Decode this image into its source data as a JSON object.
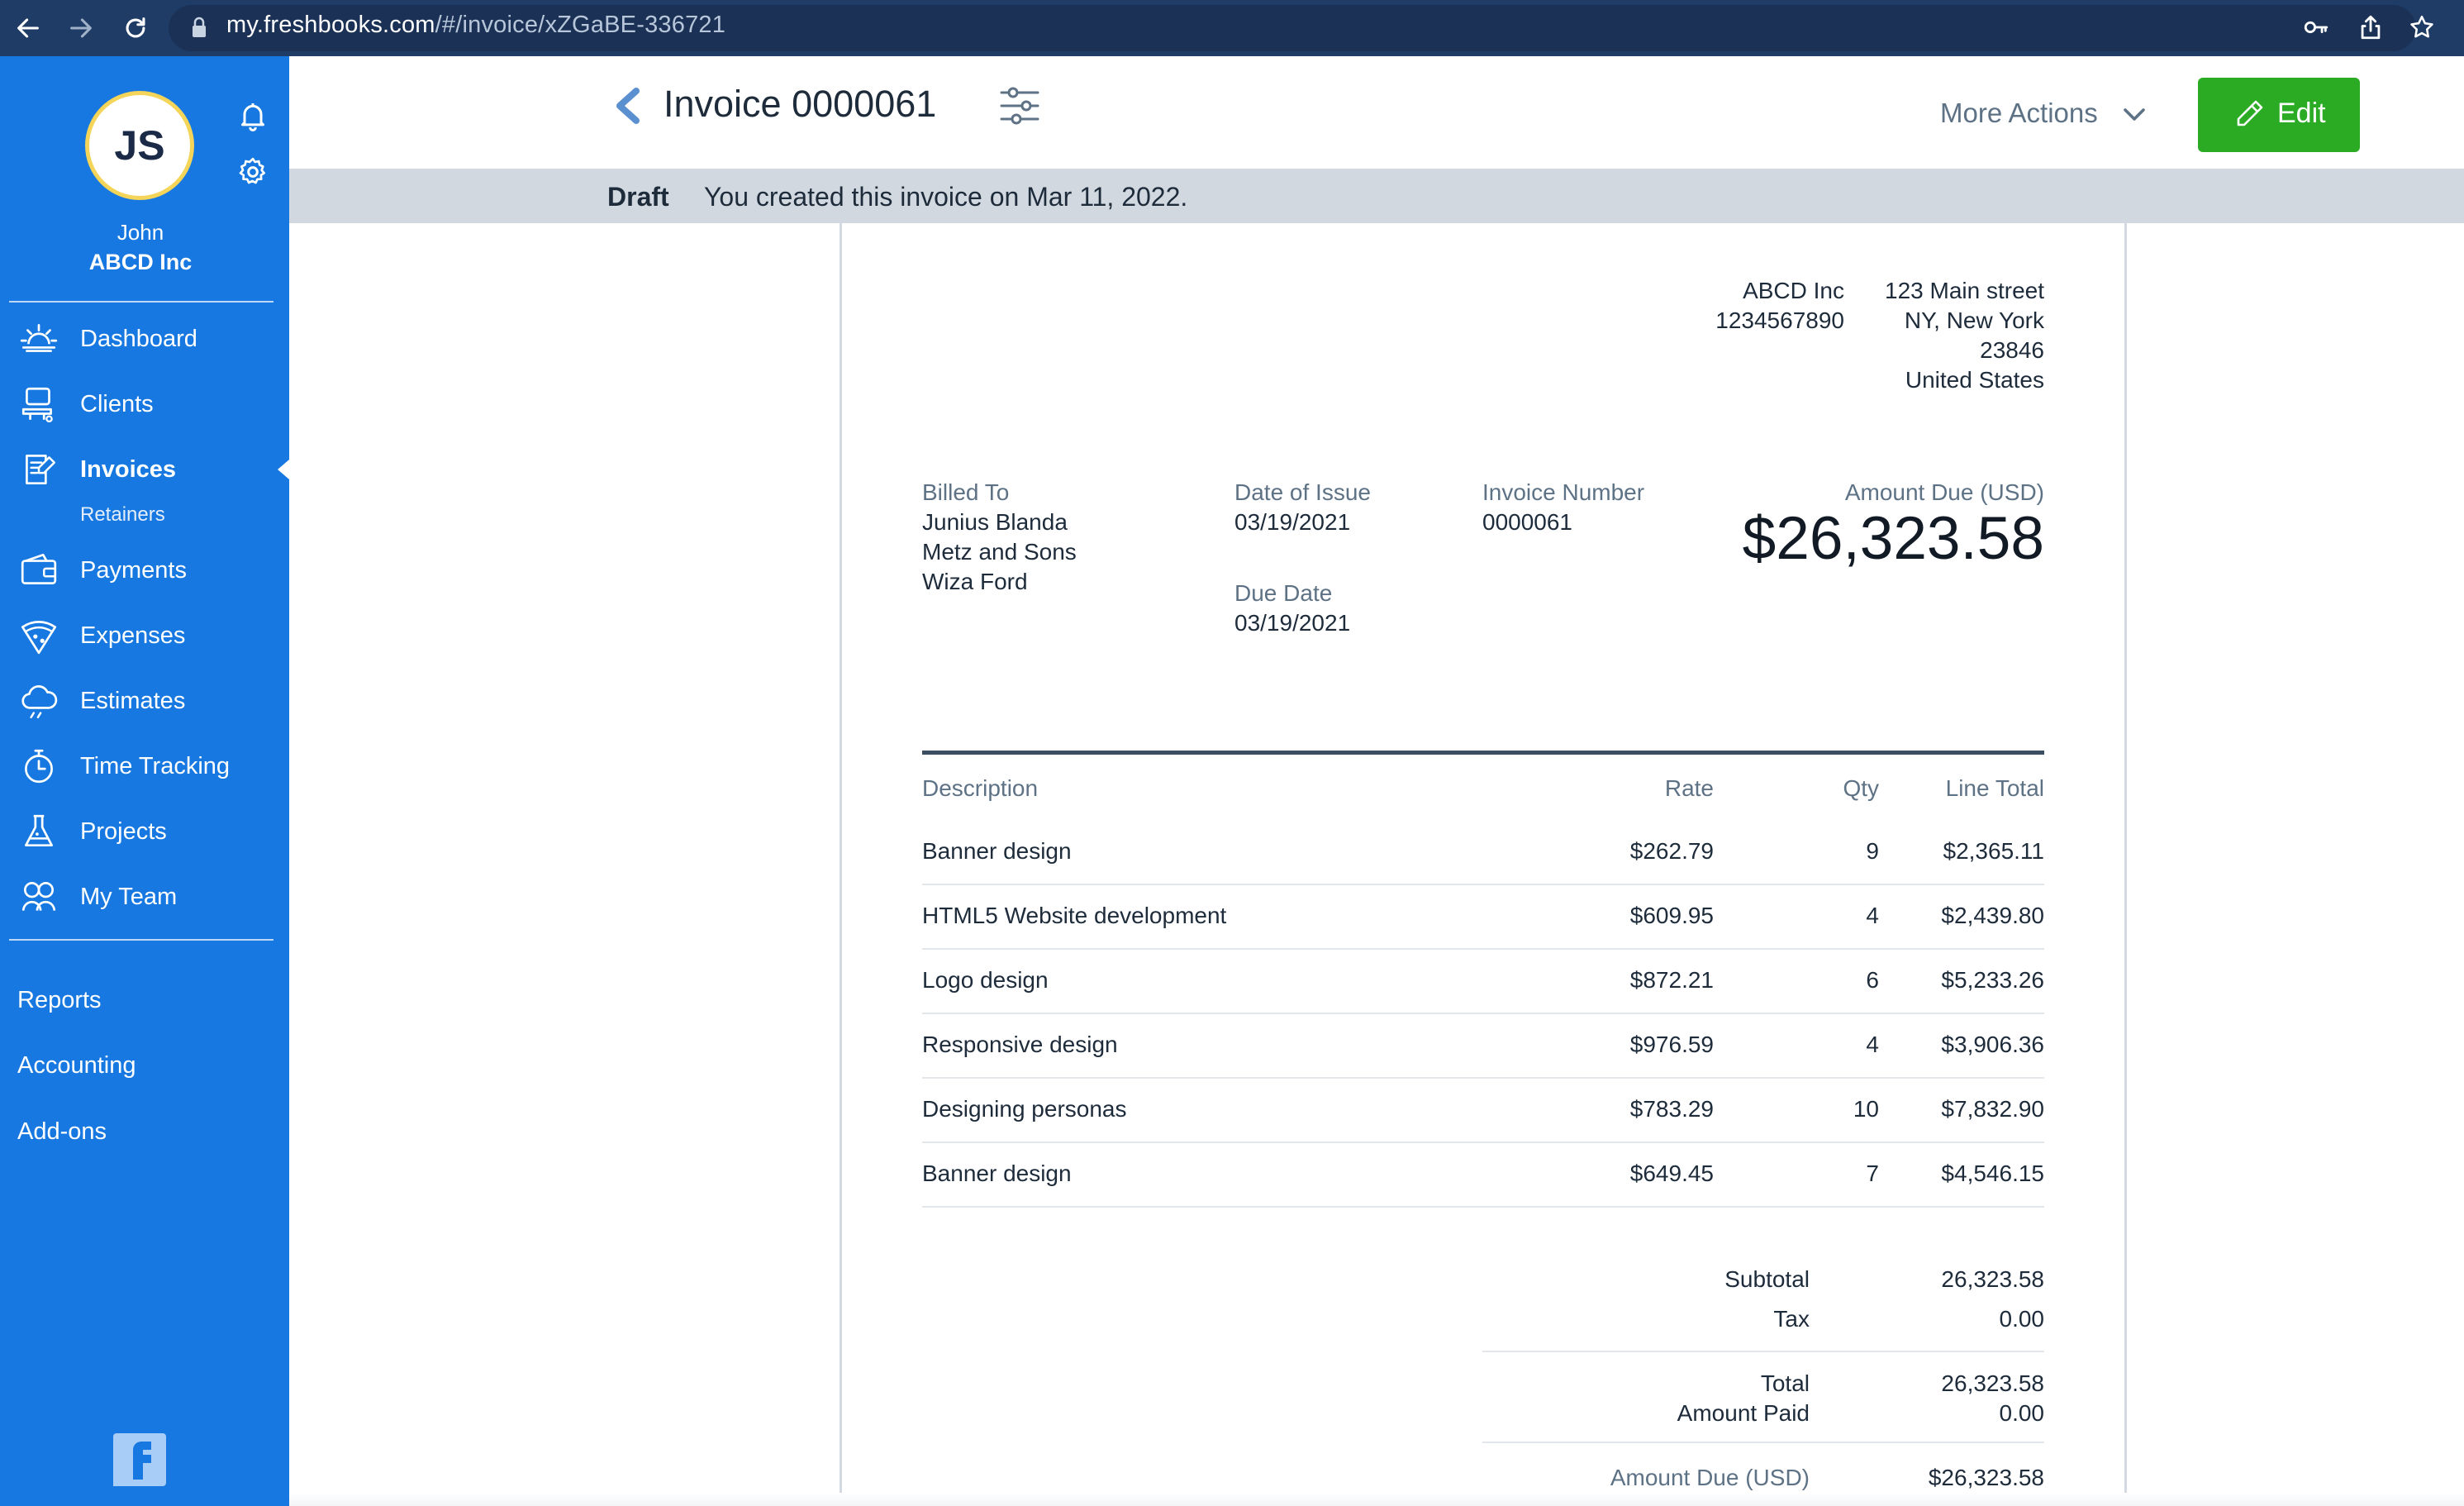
{
  "browser": {
    "url_host": "my.freshbooks.com",
    "url_path": "/#/invoice/xZGaBE-336721"
  },
  "sidebar": {
    "avatar_initials": "JS",
    "user_name": "John",
    "company": "ABCD Inc",
    "items": [
      {
        "label": "Dashboard",
        "icon": "dashboard-sun-icon"
      },
      {
        "label": "Clients",
        "icon": "clients-icon"
      },
      {
        "label": "Invoices",
        "icon": "invoices-icon",
        "active": true
      },
      {
        "label": "Payments",
        "icon": "payments-wallet-icon"
      },
      {
        "label": "Expenses",
        "icon": "expenses-pizza-icon"
      },
      {
        "label": "Estimates",
        "icon": "estimates-cloud-icon"
      },
      {
        "label": "Time Tracking",
        "icon": "stopwatch-icon"
      },
      {
        "label": "Projects",
        "icon": "flask-icon"
      },
      {
        "label": "My Team",
        "icon": "team-icon"
      }
    ],
    "sub_items": {
      "invoices": "Retainers"
    },
    "bottom_links": [
      "Reports",
      "Accounting",
      "Add-ons"
    ]
  },
  "header": {
    "title": "Invoice 0000061",
    "more_actions": "More Actions",
    "edit_label": "Edit"
  },
  "status": {
    "state": "Draft",
    "message": "You created this invoice on Mar 11, 2022."
  },
  "invoice": {
    "company": {
      "name": "ABCD Inc",
      "phone": "1234567890",
      "street": "123 Main street",
      "city": "NY, New York",
      "zip": "23846",
      "country": "United States"
    },
    "billed_to_label": "Billed To",
    "billed_to": [
      "Junius Blanda",
      "Metz and Sons",
      "Wiza Ford"
    ],
    "date_of_issue_label": "Date of Issue",
    "date_of_issue": "03/19/2021",
    "due_date_label": "Due Date",
    "due_date": "03/19/2021",
    "invoice_number_label": "Invoice Number",
    "invoice_number": "0000061",
    "amount_due_label": "Amount Due (USD)",
    "amount_due": "$26,323.58",
    "columns": {
      "description": "Description",
      "rate": "Rate",
      "qty": "Qty",
      "line_total": "Line Total"
    },
    "lines": [
      {
        "description": "Banner design",
        "rate": "$262.79",
        "qty": "9",
        "total": "$2,365.11"
      },
      {
        "description": "HTML5 Website development",
        "rate": "$609.95",
        "qty": "4",
        "total": "$2,439.80"
      },
      {
        "description": "Logo design",
        "rate": "$872.21",
        "qty": "6",
        "total": "$5,233.26"
      },
      {
        "description": "Responsive design",
        "rate": "$976.59",
        "qty": "4",
        "total": "$3,906.36"
      },
      {
        "description": "Designing personas",
        "rate": "$783.29",
        "qty": "10",
        "total": "$7,832.90"
      },
      {
        "description": "Banner design",
        "rate": "$649.45",
        "qty": "7",
        "total": "$4,546.15"
      }
    ],
    "summary": {
      "subtotal_label": "Subtotal",
      "subtotal": "26,323.58",
      "tax_label": "Tax",
      "tax": "0.00",
      "total_label": "Total",
      "total": "26,323.58",
      "amount_paid_label": "Amount Paid",
      "amount_paid": "0.00",
      "amount_due_label": "Amount Due (USD)",
      "amount_due": "$26,323.58"
    }
  },
  "colors": {
    "sidebar": "#1678e0",
    "browser_bar": "#1f3c66",
    "edit_button": "#2bab24",
    "status_bar": "#d2d8e0",
    "muted_label": "#5e7286"
  }
}
